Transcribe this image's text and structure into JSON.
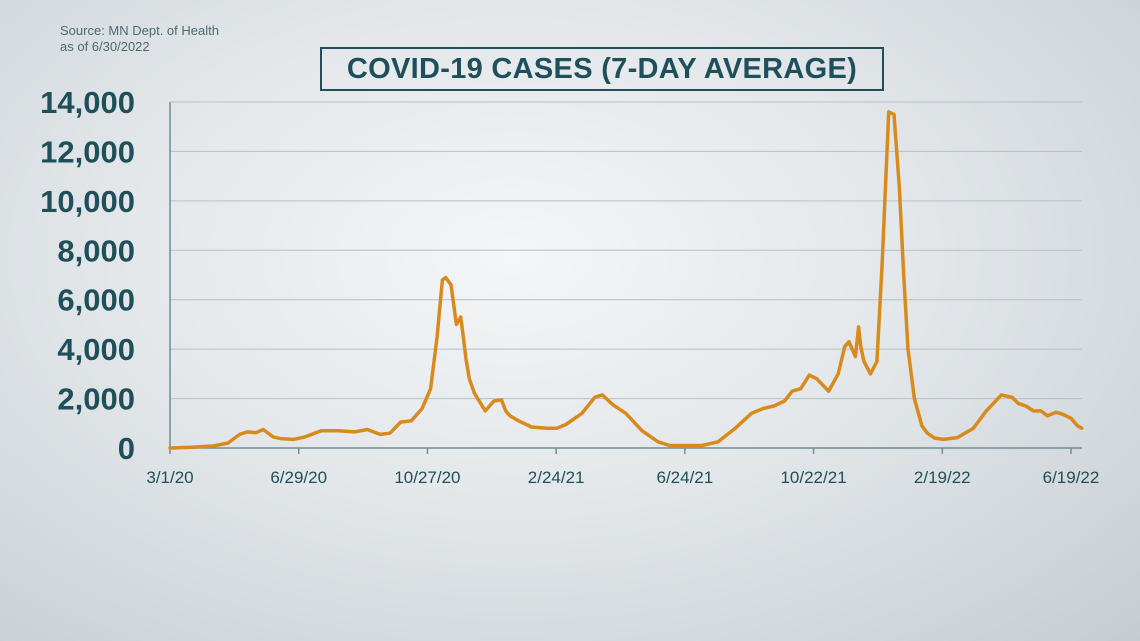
{
  "source": {
    "line1": "Source: MN Dept. of Health",
    "line2": "as of 6/30/2022"
  },
  "chart_data": {
    "type": "line",
    "title": "COVID-19 CASES (7-DAY AVERAGE)",
    "xlabel": "",
    "ylabel": "",
    "ylim": [
      0,
      14000
    ],
    "yticks": [
      0,
      2000,
      4000,
      6000,
      8000,
      10000,
      12000,
      14000
    ],
    "ytick_labels": [
      "0",
      "2,000",
      "4,000",
      "6,000",
      "8,000",
      "10,000",
      "12,000",
      "14,000"
    ],
    "xtick_labels": [
      "3/1/20",
      "6/29/20",
      "10/27/20",
      "2/24/21",
      "6/24/21",
      "10/22/21",
      "2/19/22",
      "6/19/22"
    ],
    "xtick_dates": [
      "2020-03-01",
      "2020-06-29",
      "2020-10-27",
      "2021-02-24",
      "2021-06-24",
      "2021-10-22",
      "2022-02-19",
      "2022-06-19"
    ],
    "grid": true,
    "line_color": "#d98a1c",
    "series": [
      {
        "x": [
          "2020-03-01",
          "2020-03-21",
          "2020-04-10",
          "2020-04-24",
          "2020-05-05",
          "2020-05-12",
          "2020-05-20",
          "2020-05-27",
          "2020-06-05",
          "2020-06-12",
          "2020-06-24",
          "2020-07-05",
          "2020-07-20",
          "2020-08-05",
          "2020-08-20",
          "2020-09-01",
          "2020-09-13",
          "2020-09-22",
          "2020-10-02",
          "2020-10-12",
          "2020-10-22",
          "2020-10-30",
          "2020-11-05",
          "2020-11-10",
          "2020-11-13",
          "2020-11-18",
          "2020-11-23",
          "2020-11-27",
          "2020-11-30",
          "2020-12-02",
          "2020-12-05",
          "2020-12-10",
          "2020-12-20",
          "2020-12-28",
          "2021-01-04",
          "2021-01-08",
          "2021-01-12",
          "2021-01-20",
          "2021-02-01",
          "2021-02-15",
          "2021-02-25",
          "2021-03-05",
          "2021-03-20",
          "2021-04-01",
          "2021-04-08",
          "2021-04-18",
          "2021-04-30",
          "2021-05-15",
          "2021-05-30",
          "2021-06-10",
          "2021-06-24",
          "2021-07-10",
          "2021-07-25",
          "2021-08-10",
          "2021-08-25",
          "2021-09-05",
          "2021-09-15",
          "2021-09-25",
          "2021-10-02",
          "2021-10-10",
          "2021-10-18",
          "2021-10-25",
          "2021-11-05",
          "2021-11-14",
          "2021-11-20",
          "2021-11-24",
          "2021-11-26",
          "2021-11-30",
          "2021-12-03",
          "2021-12-05",
          "2021-12-08",
          "2021-12-14",
          "2021-12-20",
          "2021-12-25",
          "2021-12-31",
          "2022-01-05",
          "2022-01-10",
          "2022-01-14",
          "2022-01-18",
          "2022-01-24",
          "2022-01-31",
          "2022-02-05",
          "2022-02-12",
          "2022-02-20",
          "2022-03-05",
          "2022-03-20",
          "2022-04-01",
          "2022-04-15",
          "2022-04-25",
          "2022-05-01",
          "2022-05-08",
          "2022-05-15",
          "2022-05-22",
          "2022-05-28",
          "2022-06-05",
          "2022-06-12",
          "2022-06-19",
          "2022-06-25",
          "2022-06-29"
        ],
        "y": [
          0,
          30,
          80,
          200,
          550,
          650,
          620,
          750,
          450,
          380,
          350,
          450,
          700,
          700,
          650,
          750,
          550,
          600,
          1050,
          1100,
          1600,
          2400,
          4500,
          6800,
          6900,
          6600,
          5000,
          5300,
          4300,
          3600,
          2800,
          2200,
          1500,
          1900,
          1950,
          1500,
          1300,
          1100,
          850,
          800,
          800,
          950,
          1400,
          2050,
          2150,
          1750,
          1400,
          700,
          250,
          100,
          100,
          100,
          250,
          800,
          1400,
          1600,
          1700,
          1900,
          2300,
          2400,
          2950,
          2800,
          2300,
          3000,
          4100,
          4300,
          4100,
          3700,
          4900,
          4100,
          3500,
          3000,
          3500,
          7500,
          13600,
          13500,
          10500,
          7000,
          4000,
          2000,
          900,
          600,
          400,
          350,
          420,
          800,
          1500,
          2150,
          2050,
          1800,
          1700,
          1500,
          1500,
          1300,
          1450,
          1350,
          1200,
          900,
          800
        ]
      }
    ]
  }
}
